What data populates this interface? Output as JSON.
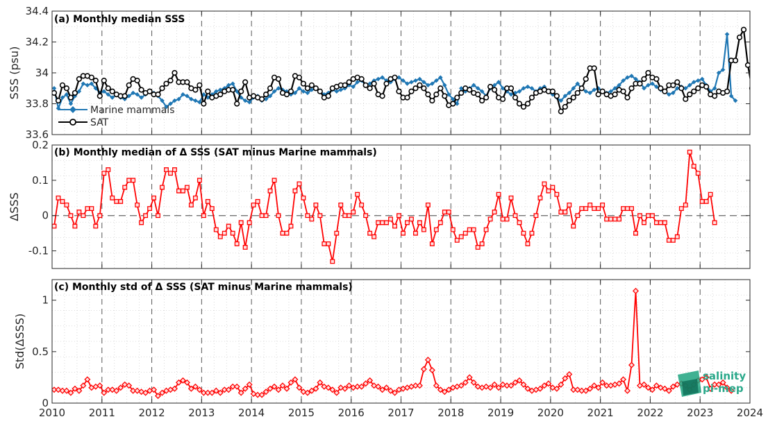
{
  "colors": {
    "marine_mammals": "#1f77b4",
    "sat": "#000000",
    "delta": "#ff0000",
    "logo": "#2aa88a",
    "grid": "#d0d0d0"
  },
  "x_axis": {
    "ticks": [
      "2010",
      "2011",
      "2012",
      "2013",
      "2014",
      "2015",
      "2016",
      "2017",
      "2018",
      "2019",
      "2020",
      "2021",
      "2022",
      "2023",
      "2024"
    ],
    "xlim": [
      2010,
      2024
    ]
  },
  "logo": {
    "line1": "salinity",
    "line2": "pi-mep"
  },
  "chart_data": [
    {
      "type": "line",
      "title": "(a) Monthly median SSS",
      "ylabel": "SSS (psu)",
      "ylim": [
        33.6,
        34.4
      ],
      "yticks": [
        "33.6",
        "33.8",
        "34",
        "34.2",
        "34.4"
      ],
      "grid": true,
      "legend_placement": "bottom-left",
      "x_start": "2010-01",
      "x_step": "monthly",
      "series": [
        {
          "name": "Marine mammals",
          "marker": "diamond",
          "values": [
            33.9,
            33.77,
            33.84,
            33.86,
            33.8,
            33.85,
            33.88,
            33.93,
            33.92,
            33.93,
            33.9,
            33.87,
            33.88,
            33.86,
            33.84,
            33.86,
            33.84,
            33.83,
            33.85,
            33.87,
            33.86,
            33.84,
            33.86,
            33.88,
            33.87,
            33.85,
            33.82,
            33.78,
            33.8,
            33.82,
            33.83,
            33.86,
            33.85,
            33.83,
            33.82,
            33.81,
            33.86,
            33.84,
            33.86,
            33.88,
            33.89,
            33.9,
            33.92,
            33.93,
            33.88,
            33.84,
            33.82,
            33.81,
            33.84,
            33.85,
            33.82,
            33.83,
            33.85,
            33.88,
            33.9,
            33.89,
            33.88,
            33.86,
            33.87,
            33.9,
            33.88,
            33.87,
            33.89,
            33.9,
            33.88,
            33.86,
            33.87,
            33.89,
            33.88,
            33.89,
            33.9,
            33.92,
            33.91,
            33.94,
            33.95,
            33.92,
            33.93,
            33.95,
            33.96,
            33.97,
            33.95,
            33.94,
            33.96,
            33.97,
            33.95,
            33.93,
            33.94,
            33.95,
            33.96,
            33.94,
            33.92,
            33.93,
            33.95,
            33.97,
            33.92,
            33.86,
            33.83,
            33.8,
            33.9,
            33.88,
            33.9,
            33.92,
            33.9,
            33.88,
            33.85,
            33.9,
            33.92,
            33.94,
            33.9,
            33.88,
            33.86,
            33.87,
            33.88,
            33.9,
            33.91,
            33.9,
            33.88,
            33.9,
            33.91,
            33.88,
            33.86,
            33.84,
            33.82,
            33.85,
            33.87,
            33.9,
            33.93,
            33.9,
            33.88,
            33.87,
            33.89,
            33.9,
            33.88,
            33.87,
            33.88,
            33.9,
            33.92,
            33.95,
            33.97,
            33.98,
            33.96,
            33.94,
            33.9,
            33.92,
            33.93,
            33.91,
            33.89,
            33.88,
            33.86,
            33.87,
            33.9,
            33.91,
            33.9,
            33.92,
            33.94,
            33.95,
            33.96,
            33.92,
            33.88,
            33.9,
            34.0,
            34.02,
            34.25,
            33.85,
            33.82
          ]
        },
        {
          "name": "SAT",
          "marker": "circle",
          "values": [
            33.87,
            33.82,
            33.92,
            33.9,
            33.84,
            33.87,
            33.96,
            33.98,
            33.98,
            33.97,
            33.95,
            33.85,
            33.95,
            33.9,
            33.88,
            33.86,
            33.85,
            33.85,
            33.92,
            33.96,
            33.95,
            33.89,
            33.87,
            33.88,
            33.86,
            33.86,
            33.9,
            33.93,
            33.95,
            34.0,
            33.94,
            33.94,
            33.94,
            33.9,
            33.89,
            33.92,
            33.8,
            33.88,
            33.84,
            33.85,
            33.86,
            33.88,
            33.89,
            33.89,
            33.8,
            33.88,
            33.94,
            33.84,
            33.85,
            33.84,
            33.83,
            33.86,
            33.9,
            33.97,
            33.96,
            33.87,
            33.86,
            33.88,
            33.98,
            33.97,
            33.93,
            33.9,
            33.92,
            33.9,
            33.88,
            33.84,
            33.85,
            33.9,
            33.91,
            33.92,
            33.92,
            33.94,
            33.96,
            33.97,
            33.96,
            33.92,
            33.9,
            33.93,
            33.86,
            33.85,
            33.93,
            33.96,
            33.97,
            33.88,
            33.84,
            33.84,
            33.88,
            33.9,
            33.92,
            33.9,
            33.86,
            33.82,
            33.86,
            33.9,
            33.85,
            33.79,
            33.8,
            33.84,
            33.87,
            33.9,
            33.89,
            33.87,
            33.86,
            33.82,
            33.84,
            33.91,
            33.89,
            33.84,
            33.83,
            33.9,
            33.9,
            33.84,
            33.8,
            33.78,
            33.8,
            33.84,
            33.87,
            33.88,
            33.89,
            33.88,
            33.88,
            33.85,
            33.75,
            33.78,
            33.82,
            33.84,
            33.87,
            33.9,
            33.96,
            34.03,
            34.03,
            33.86,
            33.88,
            33.86,
            33.85,
            33.86,
            33.89,
            33.88,
            33.84,
            33.9,
            33.93,
            33.93,
            33.96,
            34.0,
            33.97,
            33.96,
            33.9,
            33.88,
            33.92,
            33.92,
            33.94,
            33.9,
            33.83,
            33.86,
            33.88,
            33.9,
            33.92,
            33.91,
            33.86,
            33.85,
            33.88,
            33.87,
            33.88,
            34.08,
            34.08,
            34.23,
            34.28,
            34.05,
            33.9,
            33.83
          ]
        }
      ]
    },
    {
      "type": "line",
      "title": "(b) Monthly median of Δ SSS (SAT minus Marine mammals)",
      "ylabel": "ΔSSS",
      "ylim": [
        -0.15,
        0.2
      ],
      "yticks": [
        "-0.1",
        "0",
        "0.1",
        "0.2"
      ],
      "zero_line": true,
      "grid": true,
      "x_start": "2010-01",
      "x_step": "monthly",
      "series": [
        {
          "marker": "square",
          "values": [
            -0.03,
            0.05,
            0.04,
            0.03,
            0.0,
            -0.03,
            0.01,
            0.0,
            0.02,
            0.02,
            -0.03,
            0.0,
            0.12,
            0.13,
            0.05,
            0.04,
            0.04,
            0.08,
            0.1,
            0.1,
            0.03,
            -0.02,
            0.0,
            0.02,
            0.05,
            0.0,
            0.08,
            0.13,
            0.12,
            0.13,
            0.07,
            0.07,
            0.08,
            0.03,
            0.05,
            0.1,
            0.0,
            0.04,
            0.02,
            -0.04,
            -0.06,
            -0.05,
            -0.03,
            -0.05,
            -0.08,
            -0.02,
            -0.09,
            -0.02,
            0.03,
            0.04,
            0.0,
            0.0,
            0.07,
            0.1,
            0.0,
            -0.05,
            -0.05,
            -0.03,
            0.07,
            0.09,
            0.05,
            0.0,
            -0.01,
            0.03,
            0.0,
            -0.08,
            -0.08,
            -0.13,
            -0.05,
            0.03,
            0.0,
            0.0,
            0.01,
            0.06,
            0.03,
            0.0,
            -0.05,
            -0.06,
            -0.02,
            -0.02,
            -0.02,
            -0.01,
            -0.03,
            0.0,
            -0.05,
            -0.02,
            -0.01,
            -0.05,
            -0.02,
            -0.04,
            0.03,
            -0.08,
            -0.04,
            -0.02,
            0.01,
            0.01,
            -0.04,
            -0.07,
            -0.06,
            -0.05,
            -0.04,
            -0.04,
            -0.09,
            -0.08,
            -0.04,
            -0.01,
            0.01,
            0.06,
            -0.01,
            -0.01,
            0.05,
            0.0,
            -0.02,
            -0.05,
            -0.08,
            -0.05,
            0.0,
            0.05,
            0.09,
            0.07,
            0.08,
            0.06,
            0.01,
            0.01,
            0.03,
            -0.03,
            0.0,
            0.02,
            0.02,
            0.03,
            0.02,
            0.02,
            0.03,
            -0.01,
            -0.01,
            -0.01,
            -0.01,
            0.02,
            0.02,
            0.02,
            -0.05,
            0.0,
            -0.02,
            0.0,
            0.0,
            -0.02,
            -0.02,
            -0.02,
            -0.07,
            -0.07,
            -0.06,
            0.02,
            0.03,
            0.18,
            0.14,
            0.12,
            0.04,
            0.04,
            0.06,
            -0.02
          ]
        }
      ]
    },
    {
      "type": "line",
      "title": "(c) Monthly std of Δ SSS (SAT minus Marine mammals)",
      "ylabel": "Std(ΔSSS)",
      "ylim": [
        0,
        1.2
      ],
      "yticks": [
        "0",
        "0.5",
        "1"
      ],
      "grid": true,
      "x_start": "2010-01",
      "x_step": "monthly",
      "series": [
        {
          "marker": "diamond",
          "values": [
            0.13,
            0.13,
            0.12,
            0.12,
            0.1,
            0.14,
            0.12,
            0.17,
            0.23,
            0.15,
            0.16,
            0.17,
            0.1,
            0.13,
            0.13,
            0.12,
            0.15,
            0.18,
            0.17,
            0.12,
            0.12,
            0.11,
            0.1,
            0.12,
            0.13,
            0.07,
            0.1,
            0.12,
            0.13,
            0.14,
            0.2,
            0.22,
            0.2,
            0.14,
            0.16,
            0.13,
            0.1,
            0.1,
            0.1,
            0.12,
            0.1,
            0.13,
            0.13,
            0.16,
            0.16,
            0.1,
            0.14,
            0.18,
            0.09,
            0.08,
            0.08,
            0.11,
            0.14,
            0.16,
            0.13,
            0.17,
            0.14,
            0.2,
            0.23,
            0.15,
            0.11,
            0.1,
            0.12,
            0.14,
            0.2,
            0.16,
            0.15,
            0.13,
            0.1,
            0.15,
            0.14,
            0.17,
            0.15,
            0.16,
            0.16,
            0.19,
            0.22,
            0.17,
            0.16,
            0.13,
            0.15,
            0.12,
            0.1,
            0.13,
            0.14,
            0.15,
            0.16,
            0.17,
            0.17,
            0.33,
            0.42,
            0.32,
            0.17,
            0.13,
            0.11,
            0.13,
            0.15,
            0.16,
            0.17,
            0.2,
            0.25,
            0.2,
            0.16,
            0.15,
            0.16,
            0.15,
            0.18,
            0.15,
            0.18,
            0.17,
            0.17,
            0.2,
            0.22,
            0.18,
            0.14,
            0.12,
            0.13,
            0.14,
            0.17,
            0.19,
            0.15,
            0.14,
            0.18,
            0.24,
            0.28,
            0.13,
            0.13,
            0.12,
            0.12,
            0.14,
            0.17,
            0.15,
            0.2,
            0.17,
            0.17,
            0.18,
            0.19,
            0.23,
            0.12,
            0.37,
            1.09,
            0.17,
            0.18,
            0.15,
            0.13,
            0.17,
            0.15,
            0.14,
            0.12,
            0.16,
            0.18,
            0.19,
            0.17,
            0.13,
            0.18,
            0.22,
            0.23,
            0.25,
            0.14,
            0.18,
            0.18,
            0.2,
            0.15,
            0.12
          ]
        }
      ]
    }
  ]
}
